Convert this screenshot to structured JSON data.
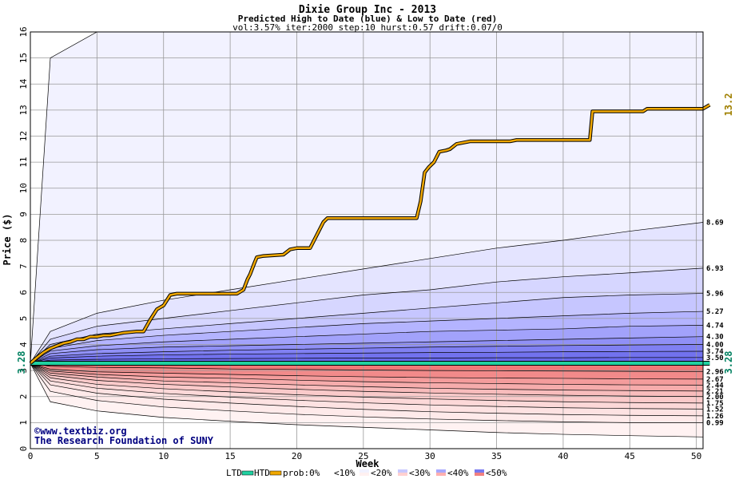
{
  "chart_data": {
    "type": "area",
    "title": "Dixie Group Inc - 2013",
    "subtitle": "Predicted High to Date (blue) &  Low to Date (red)",
    "params": "vol:3.57% iter:2000 step:10 hurst:0.57 drift:0.07/0",
    "xlabel": "Week",
    "ylabel": "Price ($)",
    "xlim": [
      0,
      50.5
    ],
    "ylim": [
      0,
      16
    ],
    "x_ticks": [
      0,
      5,
      10,
      15,
      20,
      25,
      30,
      35,
      40,
      45,
      50
    ],
    "y_ticks": [
      0,
      1,
      2,
      3,
      4,
      5,
      6,
      7,
      8,
      9,
      10,
      11,
      12,
      13,
      14,
      15,
      16
    ],
    "grid": true,
    "start_price": 3.28,
    "start_label": "3.28",
    "right_start_label": "3.28",
    "htd_final_label": "13.2",
    "htd": [
      [
        0,
        3.28
      ],
      [
        0.5,
        3.5
      ],
      [
        1,
        3.7
      ],
      [
        1.5,
        3.85
      ],
      [
        2,
        3.95
      ],
      [
        2.5,
        4.05
      ],
      [
        3,
        4.1
      ],
      [
        3.5,
        4.2
      ],
      [
        4,
        4.2
      ],
      [
        4.5,
        4.3
      ],
      [
        5,
        4.3
      ],
      [
        5.5,
        4.35
      ],
      [
        6,
        4.35
      ],
      [
        6.5,
        4.4
      ],
      [
        7,
        4.45
      ],
      [
        8,
        4.5
      ],
      [
        8.5,
        4.5
      ],
      [
        9,
        4.95
      ],
      [
        9.5,
        5.35
      ],
      [
        10,
        5.5
      ],
      [
        10.5,
        5.9
      ],
      [
        11,
        5.95
      ],
      [
        13,
        5.95
      ],
      [
        15.5,
        5.95
      ],
      [
        16,
        6.1
      ],
      [
        16.3,
        6.5
      ],
      [
        16.5,
        6.7
      ],
      [
        16.8,
        7.1
      ],
      [
        17,
        7.35
      ],
      [
        17.5,
        7.4
      ],
      [
        19,
        7.45
      ],
      [
        19.5,
        7.65
      ],
      [
        20,
        7.7
      ],
      [
        21,
        7.7
      ],
      [
        21.5,
        8.2
      ],
      [
        22,
        8.7
      ],
      [
        22.3,
        8.85
      ],
      [
        25,
        8.85
      ],
      [
        29,
        8.85
      ],
      [
        29.3,
        9.5
      ],
      [
        29.6,
        10.6
      ],
      [
        29.9,
        10.8
      ],
      [
        30.3,
        11.0
      ],
      [
        30.7,
        11.4
      ],
      [
        31.2,
        11.45
      ],
      [
        31.5,
        11.5
      ],
      [
        32,
        11.7
      ],
      [
        32.5,
        11.75
      ],
      [
        33,
        11.8
      ],
      [
        36,
        11.8
      ],
      [
        36.5,
        11.85
      ],
      [
        40,
        11.85
      ],
      [
        42,
        11.85
      ],
      [
        42.2,
        12.95
      ],
      [
        46,
        12.95
      ],
      [
        46.3,
        13.05
      ],
      [
        50.5,
        13.05
      ],
      [
        51,
        13.2
      ]
    ],
    "ltd": [
      [
        0,
        3.28
      ],
      [
        51,
        3.28
      ]
    ],
    "upper_quantiles": [
      {
        "label": "",
        "values": [
          3.28,
          15.0,
          16.0,
          16.0,
          16.0,
          16.0,
          16.0,
          16.0,
          16.0,
          16.0,
          16.0,
          16.0
        ]
      },
      {
        "label": "8.69",
        "values": [
          3.28,
          4.5,
          5.2,
          5.7,
          6.1,
          6.5,
          6.9,
          7.3,
          7.7,
          8.0,
          8.35,
          8.69
        ]
      },
      {
        "label": "6.93",
        "values": [
          3.28,
          4.2,
          4.7,
          5.0,
          5.3,
          5.6,
          5.9,
          6.1,
          6.4,
          6.6,
          6.75,
          6.93
        ]
      },
      {
        "label": "5.96",
        "values": [
          3.28,
          4.0,
          4.4,
          4.6,
          4.8,
          5.0,
          5.2,
          5.4,
          5.6,
          5.8,
          5.9,
          5.96
        ]
      },
      {
        "label": "5.27",
        "values": [
          3.28,
          3.85,
          4.15,
          4.35,
          4.5,
          4.65,
          4.8,
          4.9,
          5.0,
          5.1,
          5.2,
          5.27
        ]
      },
      {
        "label": "4.74",
        "values": [
          3.28,
          3.75,
          3.95,
          4.1,
          4.2,
          4.3,
          4.4,
          4.5,
          4.55,
          4.6,
          4.7,
          4.74
        ]
      },
      {
        "label": "4.30",
        "values": [
          3.28,
          3.65,
          3.8,
          3.9,
          3.95,
          4.0,
          4.05,
          4.1,
          4.15,
          4.2,
          4.25,
          4.3
        ]
      },
      {
        "label": "4.00",
        "values": [
          3.28,
          3.55,
          3.65,
          3.72,
          3.78,
          3.82,
          3.86,
          3.9,
          3.93,
          3.96,
          3.98,
          4.0
        ]
      },
      {
        "label": "3.74",
        "values": [
          3.28,
          3.48,
          3.55,
          3.6,
          3.63,
          3.65,
          3.67,
          3.69,
          3.7,
          3.72,
          3.73,
          3.74
        ]
      },
      {
        "label": "3.50",
        "values": [
          3.28,
          3.4,
          3.43,
          3.45,
          3.46,
          3.47,
          3.48,
          3.48,
          3.49,
          3.49,
          3.5,
          3.5
        ]
      }
    ],
    "lower_quantiles": [
      {
        "label": "2.96",
        "values": [
          3.28,
          3.16,
          3.12,
          3.1,
          3.06,
          3.04,
          3.02,
          3.0,
          2.99,
          2.98,
          2.97,
          2.96
        ]
      },
      {
        "label": "2.67",
        "values": [
          3.28,
          3.05,
          2.95,
          2.9,
          2.85,
          2.8,
          2.76,
          2.73,
          2.71,
          2.7,
          2.68,
          2.67
        ]
      },
      {
        "label": "2.44",
        "values": [
          3.28,
          2.98,
          2.85,
          2.75,
          2.7,
          2.63,
          2.57,
          2.53,
          2.5,
          2.47,
          2.45,
          2.44
        ]
      },
      {
        "label": "2.21",
        "values": [
          3.28,
          2.9,
          2.75,
          2.6,
          2.53,
          2.45,
          2.38,
          2.32,
          2.28,
          2.25,
          2.23,
          2.21
        ]
      },
      {
        "label": "2.00",
        "values": [
          3.28,
          2.82,
          2.62,
          2.47,
          2.37,
          2.28,
          2.2,
          2.14,
          2.09,
          2.05,
          2.02,
          2.0
        ]
      },
      {
        "label": "1.75",
        "values": [
          3.28,
          2.72,
          2.47,
          2.3,
          2.18,
          2.07,
          1.98,
          1.91,
          1.85,
          1.8,
          1.77,
          1.75
        ]
      },
      {
        "label": "1.52",
        "values": [
          3.28,
          2.6,
          2.32,
          2.12,
          1.98,
          1.86,
          1.76,
          1.68,
          1.62,
          1.57,
          1.54,
          1.52
        ]
      },
      {
        "label": "1.26",
        "values": [
          3.28,
          2.45,
          2.13,
          1.9,
          1.75,
          1.62,
          1.51,
          1.42,
          1.36,
          1.31,
          1.28,
          1.26
        ]
      },
      {
        "label": "0.99",
        "values": [
          3.28,
          2.2,
          1.85,
          1.6,
          1.45,
          1.32,
          1.22,
          1.14,
          1.08,
          1.03,
          1.0,
          0.99
        ]
      },
      {
        "label": "",
        "values": [
          3.28,
          1.8,
          1.45,
          1.2,
          1.05,
          0.92,
          0.82,
          0.72,
          0.62,
          0.55,
          0.5,
          0.45
        ]
      }
    ],
    "quantile_weeks": [
      0,
      1.5,
      5,
      10,
      15,
      20,
      25,
      30,
      35,
      40,
      45,
      50.5
    ],
    "credits": [
      "©www.textbiz.org",
      "The Research Foundation of SUNY"
    ],
    "legend": {
      "ltd": "LTD",
      "htd": "HTD",
      "prob_label": "prob:0%",
      "bins": [
        "<10%",
        "<20%",
        "<30%",
        "<40%",
        "<50%"
      ],
      "ltd_color": "#20d0a0",
      "htd_color": "#f0a800",
      "bin_colors_blue": [
        "#f2f2ff",
        "#dadaff",
        "#c0c0ff",
        "#a0a0ff",
        "#7878f0"
      ],
      "bin_colors_red": [
        "#fff0f0",
        "#ffd8d8",
        "#ffc0c0",
        "#ffa8a8",
        "#f08080"
      ]
    }
  }
}
